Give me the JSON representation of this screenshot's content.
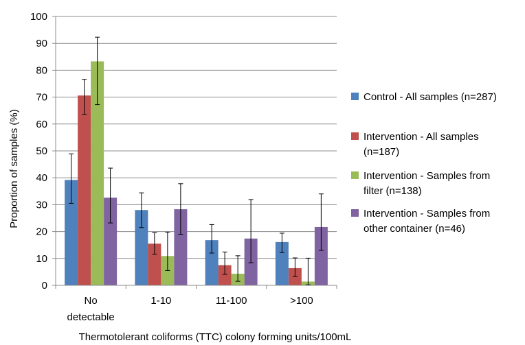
{
  "chart_data": {
    "type": "bar",
    "categories": [
      [
        "No",
        "detectable"
      ],
      [
        "1-10"
      ],
      [
        "11-100"
      ],
      [
        ">100"
      ]
    ],
    "xlabel": "Thermotolerant coliforms (TTC) colony forming units/100mL",
    "ylabel": "Proportion of samples (%)",
    "ylim": [
      0,
      100
    ],
    "yticks": [
      0,
      10,
      20,
      30,
      40,
      50,
      60,
      70,
      80,
      90,
      100
    ],
    "grid": true,
    "legend_position": "right",
    "series": [
      {
        "name": [
          "Control - All samples (n=287)"
        ],
        "color": "#4f81bd",
        "values": [
          39.2,
          28.0,
          16.8,
          16.1
        ],
        "err_low": [
          30.5,
          21.5,
          12.0,
          12.2
        ],
        "err_high": [
          48.9,
          34.4,
          22.6,
          19.4
        ]
      },
      {
        "name": [
          "Intervention - All samples",
          "(n=187)"
        ],
        "color": "#c0504d",
        "values": [
          70.6,
          15.5,
          7.5,
          6.4
        ],
        "err_low": [
          63.6,
          11.6,
          4.1,
          3.3
        ],
        "err_high": [
          76.6,
          19.6,
          12.4,
          10.2
        ]
      },
      {
        "name": [
          "Intervention - Samples from",
          "filter (n=138)"
        ],
        "color": "#9bbb59",
        "values": [
          83.3,
          10.9,
          4.3,
          1.4
        ],
        "err_low": [
          67.2,
          5.5,
          1.5,
          0.2
        ],
        "err_high": [
          92.3,
          19.8,
          11.0,
          10.1
        ]
      },
      {
        "name": [
          "Intervention - Samples from",
          "other container (n=46)"
        ],
        "color": "#8064a2",
        "values": [
          32.6,
          28.3,
          17.4,
          21.7
        ],
        "err_low": [
          23.2,
          19.0,
          8.4,
          13.0
        ],
        "err_high": [
          43.6,
          37.8,
          31.9,
          34.0
        ]
      }
    ]
  }
}
